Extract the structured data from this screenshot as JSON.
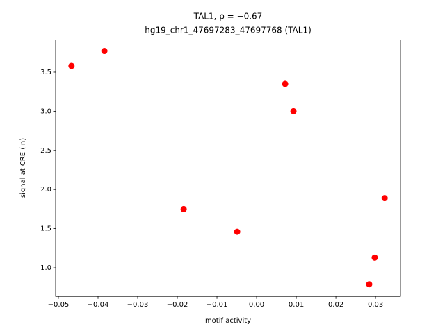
{
  "chart_data": {
    "type": "scatter",
    "title": "TAL1, ρ = −0.67",
    "subtitle": "hg19_chr1_47697283_47697768 (TAL1)",
    "x_label": "motif activity",
    "y_label": "signal at CRE (ln)",
    "color": "#ff0000",
    "x": [
      -0.0467,
      -0.0384,
      -0.0184,
      -0.0049,
      0.0072,
      0.0093,
      0.0323,
      0.0298,
      0.0284
    ],
    "y": [
      3.58,
      3.77,
      1.75,
      1.46,
      3.35,
      3.0,
      1.89,
      1.13,
      0.79
    ],
    "xlim": [
      -0.0507,
      0.0363
    ],
    "ylim": [
      0.635,
      3.911
    ],
    "xticks": [
      {
        "value": -0.05,
        "label": "−0.05"
      },
      {
        "value": -0.04,
        "label": "−0.04"
      },
      {
        "value": -0.03,
        "label": "−0.03"
      },
      {
        "value": -0.02,
        "label": "−0.02"
      },
      {
        "value": -0.01,
        "label": "−0.01"
      },
      {
        "value": 0,
        "label": "0.00"
      },
      0.01,
      0.02,
      0.03
    ],
    "yticks": [
      {
        "value": 1,
        "label": "1.0"
      },
      1.5,
      {
        "value": 2,
        "label": "2.0"
      },
      2.5,
      {
        "value": 3,
        "label": "3.0"
      },
      3.5
    ]
  }
}
